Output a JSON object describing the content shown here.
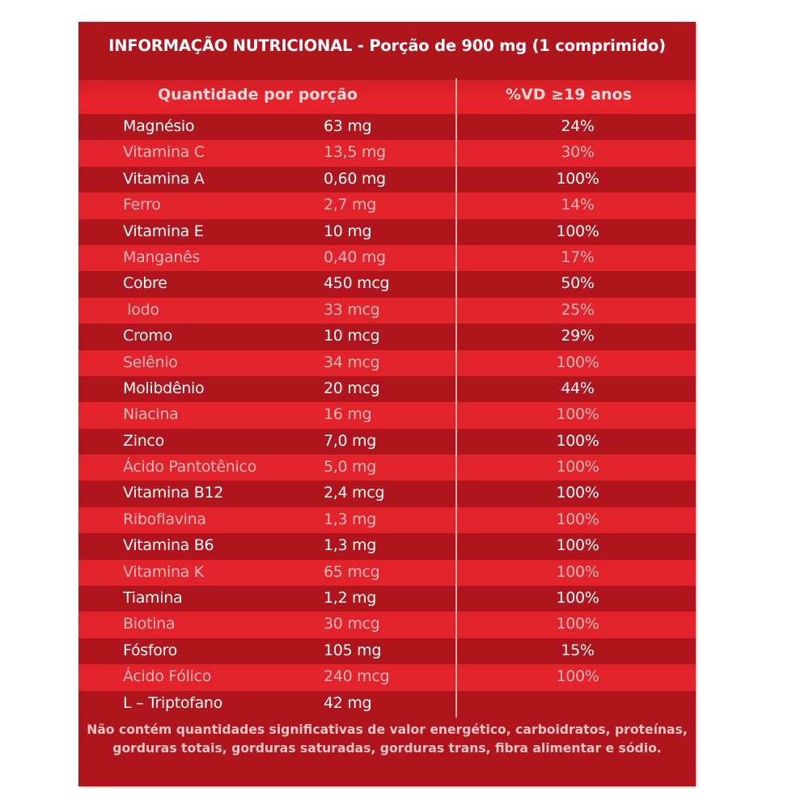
{
  "title": "INFORMAÇÃO NUTRICIONAL - Porção de 900 mg (1 comprimido)",
  "headers": {
    "quantity": "Quantidade por porção",
    "vd": "%VD ≥19 anos"
  },
  "rows": [
    {
      "name": "Magnésio",
      "amount": "63 mg",
      "vd": "24%"
    },
    {
      "name": "Vitamina C",
      "amount": "13,5 mg",
      "vd": "30%"
    },
    {
      "name": "Vitamina A",
      "amount": "0,60 mg",
      "vd": "100%"
    },
    {
      "name": "Ferro",
      "amount": "2,7 mg",
      "vd": "14%"
    },
    {
      "name": "Vitamina E",
      "amount": "10 mg",
      "vd": "100%"
    },
    {
      "name": "Manganês",
      "amount": "0,40 mg",
      "vd": "17%"
    },
    {
      "name": "Cobre",
      "amount": "450 mcg",
      "vd": "50%"
    },
    {
      "name": "Iodo",
      "amount": "33 mcg",
      "vd": "25%"
    },
    {
      "name": "Cromo",
      "amount": "10 mcg",
      "vd": "29%"
    },
    {
      "name": "Selênio",
      "amount": "34 mcg",
      "vd": "100%"
    },
    {
      "name": "Molibdênio",
      "amount": "20 mcg",
      "vd": "44%"
    },
    {
      "name": "Niacina",
      "amount": "16 mg",
      "vd": "100%"
    },
    {
      "name": "Zinco",
      "amount": "7,0 mg",
      "vd": "100%"
    },
    {
      "name": "Ácido Pantotênico",
      "amount": "5,0 mg",
      "vd": "100%"
    },
    {
      "name": "Vitamina B12",
      "amount": "2,4 mcg",
      "vd": "100%"
    },
    {
      "name": "Riboflavina",
      "amount": "1,3 mg",
      "vd": "100%"
    },
    {
      "name": "Vitamina B6",
      "amount": "1,3 mg",
      "vd": "100%"
    },
    {
      "name": "Vitamina K",
      "amount": "65 mcg",
      "vd": "100%"
    },
    {
      "name": "Tiamina",
      "amount": "1,2 mg",
      "vd": "100%"
    },
    {
      "name": "Biotina",
      "amount": "30 mcg",
      "vd": "100%"
    },
    {
      "name": "Fósforo",
      "amount": "105 mg",
      "vd": "15%"
    },
    {
      "name": "Ácido Fólico",
      "amount": "240 mcg",
      "vd": "100%"
    },
    {
      "name": "L – Triptofano",
      "amount": "42 mg",
      "vd": ""
    }
  ],
  "footnote": "Não contém quantidades significativas de valor energético, carboidratos, proteínas, gorduras totais, gorduras saturadas, gorduras trans, fibra alimentar e sódio.",
  "colors": {
    "dark_row": "#b0141c",
    "light_row": "#e3232b",
    "dark_text": "#ffffff",
    "light_text": "#f7b8bb"
  }
}
